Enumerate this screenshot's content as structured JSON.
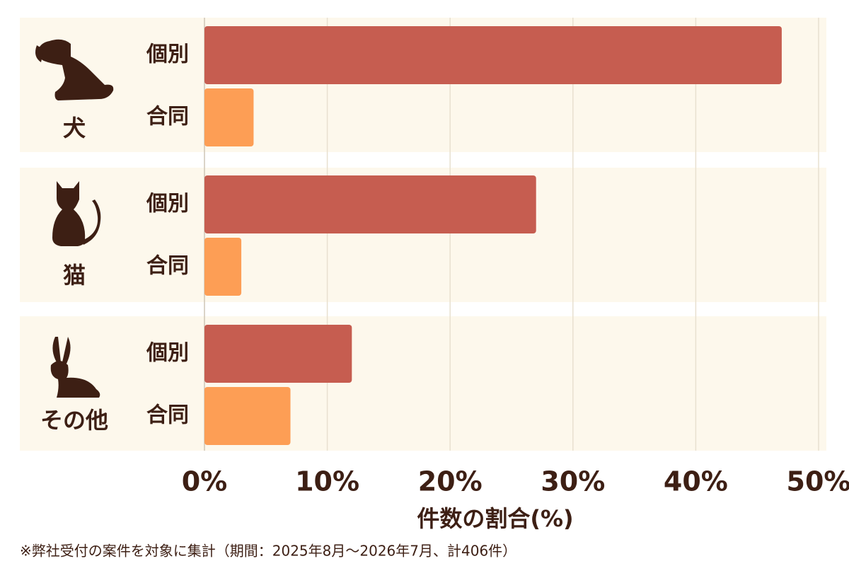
{
  "chart_data": {
    "type": "bar",
    "orientation": "horizontal",
    "categories": [
      "犬",
      "猫",
      "その他"
    ],
    "series": [
      {
        "name": "個別",
        "color": "#c65d50",
        "values": [
          47,
          27,
          12
        ]
      },
      {
        "name": "合同",
        "color": "#fd9e55",
        "values": [
          4,
          3,
          7
        ]
      }
    ],
    "xlim": [
      0,
      50
    ],
    "xticks": [
      {
        "value": 0,
        "label": "0%"
      },
      {
        "value": 10,
        "label": "10%"
      },
      {
        "value": 20,
        "label": "20%"
      },
      {
        "value": 30,
        "label": "30%"
      },
      {
        "value": 40,
        "label": "40%"
      },
      {
        "value": 50,
        "label": "50%"
      }
    ],
    "xlabel": "件数の割合(%)",
    "grid": true,
    "footnote": "※弊社受付の案件を対象に集計（期間：2025年8月～2026年7月、計406件）"
  }
}
